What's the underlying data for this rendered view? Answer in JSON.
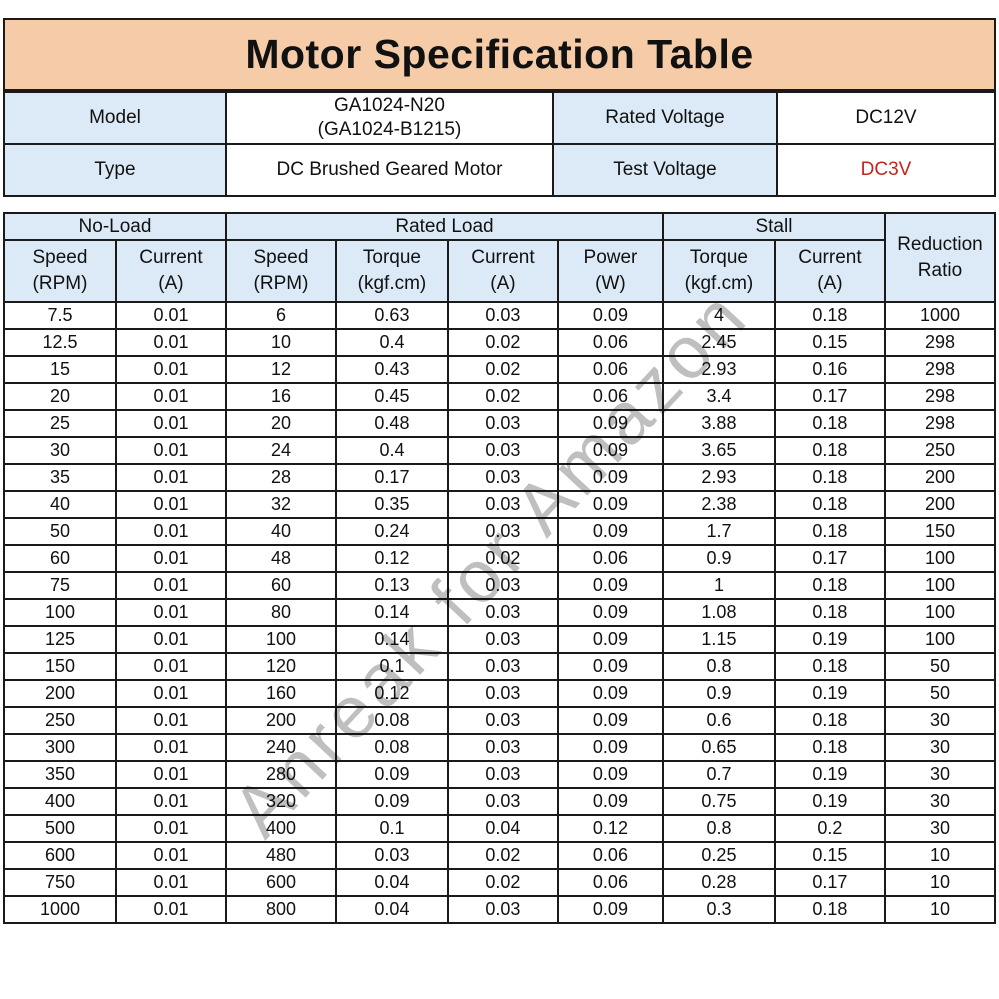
{
  "title": "Motor Specification Table",
  "info": {
    "model_label": "Model",
    "model_value_line1": "GA1024-N20",
    "model_value_line2": "(GA1024-B1215)",
    "rated_voltage_label": "Rated Voltage",
    "rated_voltage_value": "DC12V",
    "type_label": "Type",
    "type_value": "DC Brushed Geared Motor",
    "test_voltage_label": "Test Voltage",
    "test_voltage_value": "DC3V"
  },
  "spec_table": {
    "group_headers": [
      {
        "label": "No-Load",
        "colspan": 2
      },
      {
        "label": "Rated Load",
        "colspan": 4
      },
      {
        "label": "Stall",
        "colspan": 2
      }
    ],
    "corner_header_line1": "Reduction",
    "corner_header_line2": "Ratio",
    "column_headers": [
      {
        "name": "Speed",
        "unit": "(RPM)"
      },
      {
        "name": "Current",
        "unit": "(A)"
      },
      {
        "name": "Speed",
        "unit": "(RPM)"
      },
      {
        "name": "Torque",
        "unit": "(kgf.cm)"
      },
      {
        "name": "Current",
        "unit": "(A)"
      },
      {
        "name": "Power",
        "unit": "(W)"
      },
      {
        "name": "Torque",
        "unit": "(kgf.cm)"
      },
      {
        "name": "Current",
        "unit": "(A)"
      }
    ],
    "rows": [
      [
        "7.5",
        "0.01",
        "6",
        "0.63",
        "0.03",
        "0.09",
        "4",
        "0.18",
        "1000"
      ],
      [
        "12.5",
        "0.01",
        "10",
        "0.4",
        "0.02",
        "0.06",
        "2.45",
        "0.15",
        "298"
      ],
      [
        "15",
        "0.01",
        "12",
        "0.43",
        "0.02",
        "0.06",
        "2.93",
        "0.16",
        "298"
      ],
      [
        "20",
        "0.01",
        "16",
        "0.45",
        "0.02",
        "0.06",
        "3.4",
        "0.17",
        "298"
      ],
      [
        "25",
        "0.01",
        "20",
        "0.48",
        "0.03",
        "0.09",
        "3.88",
        "0.18",
        "298"
      ],
      [
        "30",
        "0.01",
        "24",
        "0.4",
        "0.03",
        "0.09",
        "3.65",
        "0.18",
        "250"
      ],
      [
        "35",
        "0.01",
        "28",
        "0.17",
        "0.03",
        "0.09",
        "2.93",
        "0.18",
        "200"
      ],
      [
        "40",
        "0.01",
        "32",
        "0.35",
        "0.03",
        "0.09",
        "2.38",
        "0.18",
        "200"
      ],
      [
        "50",
        "0.01",
        "40",
        "0.24",
        "0.03",
        "0.09",
        "1.7",
        "0.18",
        "150"
      ],
      [
        "60",
        "0.01",
        "48",
        "0.12",
        "0.02",
        "0.06",
        "0.9",
        "0.17",
        "100"
      ],
      [
        "75",
        "0.01",
        "60",
        "0.13",
        "0.03",
        "0.09",
        "1",
        "0.18",
        "100"
      ],
      [
        "100",
        "0.01",
        "80",
        "0.14",
        "0.03",
        "0.09",
        "1.08",
        "0.18",
        "100"
      ],
      [
        "125",
        "0.01",
        "100",
        "0.14",
        "0.03",
        "0.09",
        "1.15",
        "0.19",
        "100"
      ],
      [
        "150",
        "0.01",
        "120",
        "0.1",
        "0.03",
        "0.09",
        "0.8",
        "0.18",
        "50"
      ],
      [
        "200",
        "0.01",
        "160",
        "0.12",
        "0.03",
        "0.09",
        "0.9",
        "0.19",
        "50"
      ],
      [
        "250",
        "0.01",
        "200",
        "0.08",
        "0.03",
        "0.09",
        "0.6",
        "0.18",
        "30"
      ],
      [
        "300",
        "0.01",
        "240",
        "0.08",
        "0.03",
        "0.09",
        "0.65",
        "0.18",
        "30"
      ],
      [
        "350",
        "0.01",
        "280",
        "0.09",
        "0.03",
        "0.09",
        "0.7",
        "0.19",
        "30"
      ],
      [
        "400",
        "0.01",
        "320",
        "0.09",
        "0.03",
        "0.09",
        "0.75",
        "0.19",
        "30"
      ],
      [
        "500",
        "0.01",
        "400",
        "0.1",
        "0.04",
        "0.12",
        "0.8",
        "0.2",
        "30"
      ],
      [
        "600",
        "0.01",
        "480",
        "0.03",
        "0.02",
        "0.06",
        "0.25",
        "0.15",
        "10"
      ],
      [
        "750",
        "0.01",
        "600",
        "0.04",
        "0.02",
        "0.06",
        "0.28",
        "0.17",
        "10"
      ],
      [
        "1000",
        "0.01",
        "800",
        "0.04",
        "0.03",
        "0.09",
        "0.3",
        "0.18",
        "10"
      ]
    ]
  },
  "watermark": "Anreak for Amazon",
  "colors": {
    "title_bg": "#F6CBA7",
    "header_bg": "#DCE9F6",
    "test_voltage_text": "#C3241F",
    "border": "#1A1A1A",
    "watermark_gray": "#BFBFBF"
  }
}
